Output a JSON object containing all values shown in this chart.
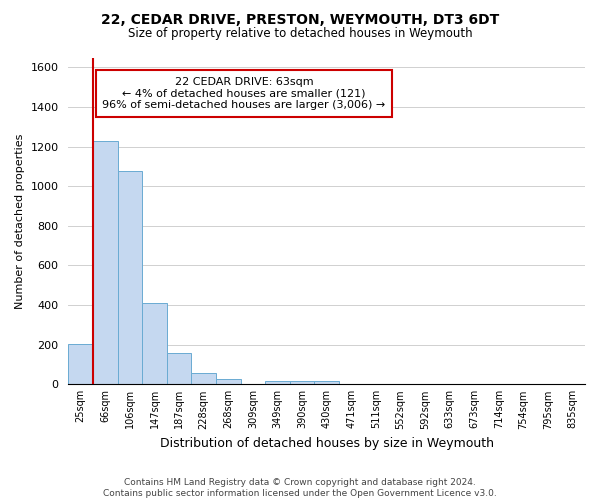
{
  "title": "22, CEDAR DRIVE, PRESTON, WEYMOUTH, DT3 6DT",
  "subtitle": "Size of property relative to detached houses in Weymouth",
  "xlabel": "Distribution of detached houses by size in Weymouth",
  "ylabel": "Number of detached properties",
  "bar_labels": [
    "25sqm",
    "66sqm",
    "106sqm",
    "147sqm",
    "187sqm",
    "228sqm",
    "268sqm",
    "309sqm",
    "349sqm",
    "390sqm",
    "430sqm",
    "471sqm",
    "511sqm",
    "552sqm",
    "592sqm",
    "633sqm",
    "673sqm",
    "714sqm",
    "754sqm",
    "795sqm",
    "835sqm"
  ],
  "bar_values": [
    205,
    1230,
    1075,
    410,
    160,
    55,
    25,
    0,
    18,
    15,
    15,
    0,
    0,
    0,
    0,
    0,
    0,
    0,
    0,
    0,
    0
  ],
  "bar_color": "#c5d8f0",
  "bar_edge_color": "#6aabd2",
  "marker_line_color": "#cc0000",
  "ylim": [
    0,
    1650
  ],
  "yticks": [
    0,
    200,
    400,
    600,
    800,
    1000,
    1200,
    1400,
    1600
  ],
  "annotation_title": "22 CEDAR DRIVE: 63sqm",
  "annotation_line1": "← 4% of detached houses are smaller (121)",
  "annotation_line2": "96% of semi-detached houses are larger (3,006) →",
  "annotation_box_color": "#ffffff",
  "annotation_box_edge": "#cc0000",
  "footer1": "Contains HM Land Registry data © Crown copyright and database right 2024.",
  "footer2": "Contains public sector information licensed under the Open Government Licence v3.0.",
  "background_color": "#ffffff",
  "grid_color": "#d0d0d0"
}
